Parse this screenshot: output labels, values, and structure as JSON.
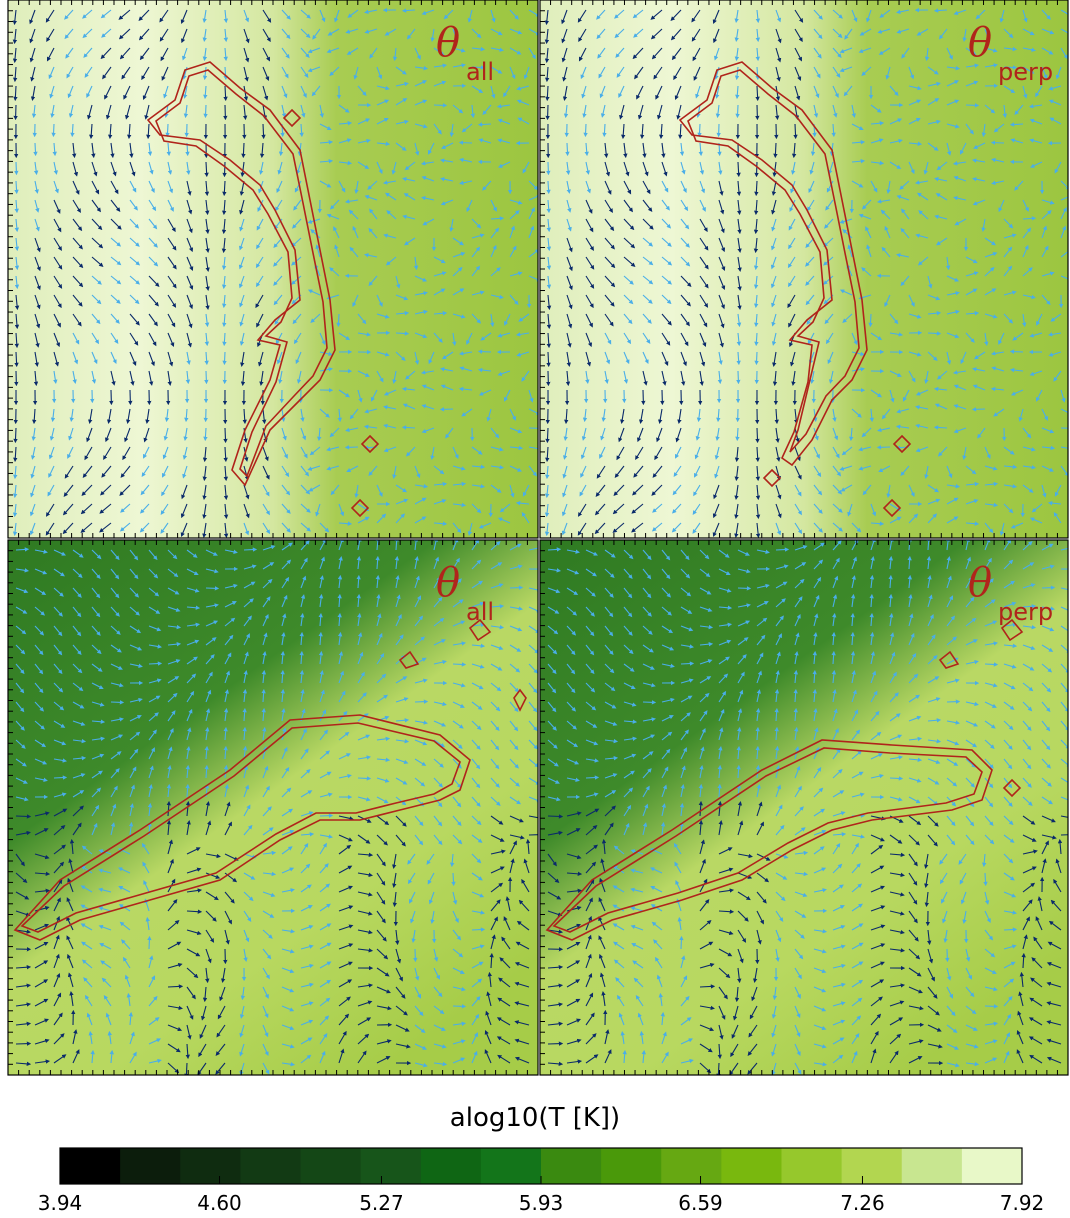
{
  "panels": [
    {
      "symbol": "θ",
      "subscript": "all"
    },
    {
      "symbol": "θ",
      "subscript": "perp"
    },
    {
      "symbol": "θ",
      "subscript": "all"
    },
    {
      "symbol": "θ",
      "subscript": "perp"
    }
  ],
  "chart_data": {
    "type": "colorbar",
    "title": "alog10(T [K])",
    "xlim": [
      3.94,
      7.92
    ],
    "xticks": [
      3.94,
      {
        "value": 4.6,
        "label": "4.60"
      },
      5.27,
      5.93,
      6.59,
      7.26,
      7.92
    ],
    "colors": [
      "#000000",
      "#0c1d0c",
      "#0f2c10",
      "#123a14",
      "#144716",
      "#17551a",
      "#0f6614",
      "#13751a",
      "#3a8a10",
      "#4a990a",
      "#66a812",
      "#79b80e",
      "#96c82c",
      "#b2d650",
      "#c8e690",
      "#e8f8c8"
    ]
  }
}
